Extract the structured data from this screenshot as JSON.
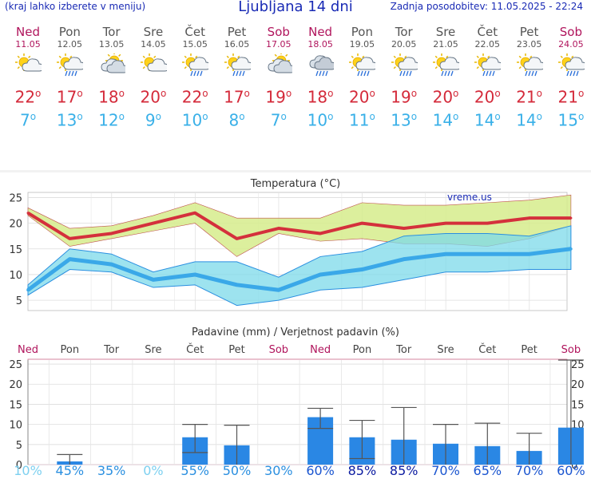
{
  "header": {
    "menu_hint": "(kraj lahko izberete v meniju)",
    "title": "Ljubljana 14 dni",
    "updated": "Zadnja posodobitev: 11.05.2025 - 22:24"
  },
  "days": [
    {
      "name": "Ned",
      "date": "11.05",
      "max": "22",
      "min": "7",
      "icon": "sun-cloud-icon",
      "weekend": true
    },
    {
      "name": "Pon",
      "date": "12.05",
      "max": "17",
      "min": "13",
      "icon": "sun-rain-icon",
      "weekend": false
    },
    {
      "name": "Tor",
      "date": "13.05",
      "max": "18",
      "min": "12",
      "icon": "cloud-sun-icon",
      "weekend": false
    },
    {
      "name": "Sre",
      "date": "14.05",
      "max": "20",
      "min": "9",
      "icon": "sun-cloud-icon",
      "weekend": false
    },
    {
      "name": "Čet",
      "date": "15.05",
      "max": "22",
      "min": "10",
      "icon": "sun-rain-icon",
      "weekend": false
    },
    {
      "name": "Pet",
      "date": "16.05",
      "max": "17",
      "min": "8",
      "icon": "sun-rain-icon",
      "weekend": false
    },
    {
      "name": "Sob",
      "date": "17.05",
      "max": "19",
      "min": "7",
      "icon": "cloud-sun-icon",
      "weekend": true
    },
    {
      "name": "Ned",
      "date": "18.05",
      "max": "18",
      "min": "10",
      "icon": "cloud-rain-icon",
      "weekend": true
    },
    {
      "name": "Pon",
      "date": "19.05",
      "max": "20",
      "min": "11",
      "icon": "sun-rain-icon",
      "weekend": false
    },
    {
      "name": "Tor",
      "date": "20.05",
      "max": "19",
      "min": "13",
      "icon": "sun-rain-icon",
      "weekend": false
    },
    {
      "name": "Sre",
      "date": "21.05",
      "max": "20",
      "min": "14",
      "icon": "sun-rain-icon",
      "weekend": false
    },
    {
      "name": "Čet",
      "date": "22.05",
      "max": "20",
      "min": "14",
      "icon": "sun-rain-icon",
      "weekend": false
    },
    {
      "name": "Pet",
      "date": "23.05",
      "max": "21",
      "min": "14",
      "icon": "sun-rain-icon",
      "weekend": false
    },
    {
      "name": "Sob",
      "date": "24.05",
      "max": "21",
      "min": "15",
      "icon": "sun-rain-icon",
      "weekend": true
    }
  ],
  "degree_sign": "o",
  "chart_data": [
    {
      "type": "line",
      "title": "Temperatura (°C)",
      "watermark": "vreme.us",
      "ylim": [
        3,
        26
      ],
      "yticks": [
        5,
        10,
        15,
        20,
        25
      ],
      "series": [
        {
          "name": "max",
          "values": [
            22,
            17,
            18,
            20,
            22,
            17,
            19,
            18,
            20,
            19,
            20,
            20,
            21,
            21
          ],
          "band_low": [
            21.5,
            15.5,
            17,
            18.5,
            20,
            13.5,
            18,
            16.5,
            17,
            16,
            16,
            15.5,
            17,
            19.5
          ],
          "band_high": [
            23,
            19,
            19.5,
            21.5,
            24,
            21,
            21,
            21,
            24,
            23.5,
            23.5,
            24,
            24.5,
            25.5
          ]
        },
        {
          "name": "min",
          "values": [
            7,
            13,
            12,
            9,
            10,
            8,
            7,
            10,
            11,
            13,
            14,
            14,
            14,
            15
          ],
          "band_low": [
            6,
            11,
            10.5,
            7.5,
            8,
            4,
            5,
            7,
            7.5,
            9,
            10.5,
            10.5,
            11,
            11
          ],
          "band_high": [
            8,
            15,
            14,
            10.5,
            12.5,
            12.5,
            9.5,
            13.5,
            14.5,
            17.5,
            18,
            18,
            17.5,
            19.5
          ]
        }
      ]
    },
    {
      "type": "bar",
      "title": "Padavine (mm) / Verjetnost padavin (%)",
      "ylim": [
        0,
        26
      ],
      "yticks": [
        0,
        5,
        10,
        15,
        20,
        25
      ],
      "values": [
        0,
        0.8,
        0,
        0,
        6.8,
        4.8,
        0,
        11.8,
        6.8,
        6.2,
        5.2,
        4.6,
        3.4,
        9.2
      ],
      "err_low": [
        0,
        0,
        0,
        0,
        3,
        0,
        0,
        9,
        1.5,
        0,
        0,
        0,
        0,
        0
      ],
      "err_high": [
        0,
        2.5,
        0,
        0,
        10,
        9.8,
        0,
        14,
        11,
        14.2,
        10,
        10.3,
        7.8,
        26
      ],
      "probability": [
        "10%",
        "45%",
        "35%",
        "0%",
        "55%",
        "50%",
        "30%",
        "60%",
        "85%",
        "85%",
        "70%",
        "65%",
        "70%",
        "60%"
      ],
      "prob_colors": [
        "#7dd0f0",
        "#2a8fe0",
        "#2a8fe0",
        "#7dd0f0",
        "#2a8fe0",
        "#2a8fe0",
        "#2a8fe0",
        "#1a55d0",
        "#0a1aa0",
        "#0a1aa0",
        "#1a55d0",
        "#1a55d0",
        "#1a55d0",
        "#1a55d0"
      ]
    }
  ]
}
